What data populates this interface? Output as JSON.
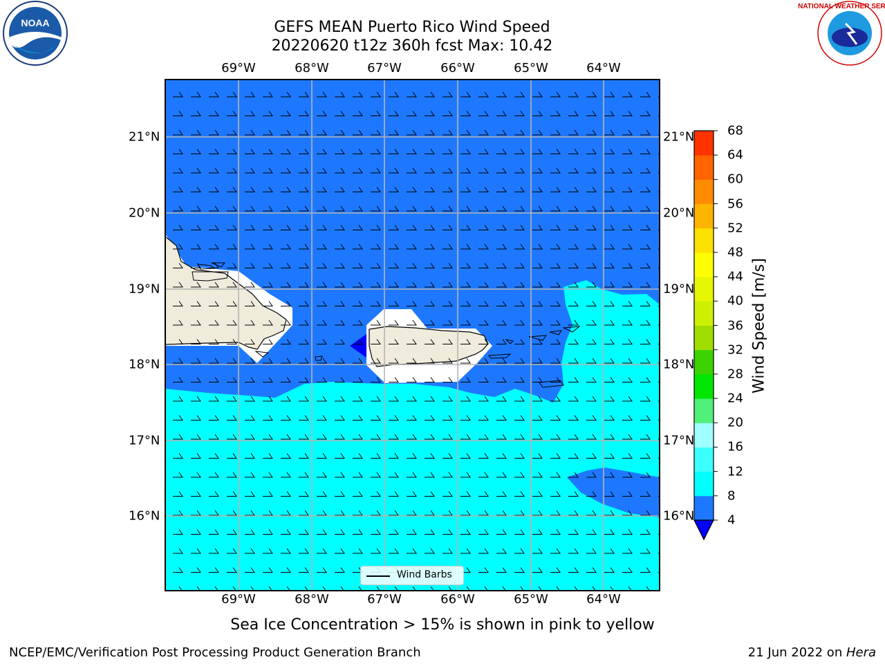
{
  "title_line1": "GEFS MEAN Puerto Rico Wind Speed",
  "title_line2": "20220620 t12z 360h fcst   Max: 10.42",
  "lon_labels": [
    "69°W",
    "68°W",
    "67°W",
    "66°W",
    "65°W",
    "64°W"
  ],
  "lat_labels": [
    "21°N",
    "20°N",
    "19°N",
    "18°N",
    "17°N",
    "16°N"
  ],
  "colorbar": {
    "title": "Wind Speed [m/s]",
    "ticks": [
      "68",
      "64",
      "60",
      "56",
      "52",
      "48",
      "44",
      "40",
      "36",
      "32",
      "28",
      "24",
      "20",
      "16",
      "12",
      "8",
      "4"
    ],
    "colors": [
      "#0000ff",
      "#1e78ff",
      "#00ffff",
      "#3cffff",
      "#a0ffff",
      "#50f07a",
      "#00e600",
      "#3cd200",
      "#a0dc00",
      "#ccf000",
      "#e6f500",
      "#ffff00",
      "#ffe100",
      "#ffb400",
      "#ff8c00",
      "#ff6400",
      "#ff3200",
      "#ff0000"
    ],
    "extend": "min"
  },
  "legend": {
    "label": "Wind Barbs"
  },
  "caption": "Sea Ice Concentration > 15% is shown in pink to yellow",
  "footer_left": "NCEP/EMC/Verification Post Processing Product Generation Branch",
  "footer_right_prefix": "21 Jun 2022 on ",
  "footer_right_host": "Hera",
  "logos": {
    "noaa": "NOAA",
    "nws": "NATIONAL WEATHER SERVICE"
  }
}
